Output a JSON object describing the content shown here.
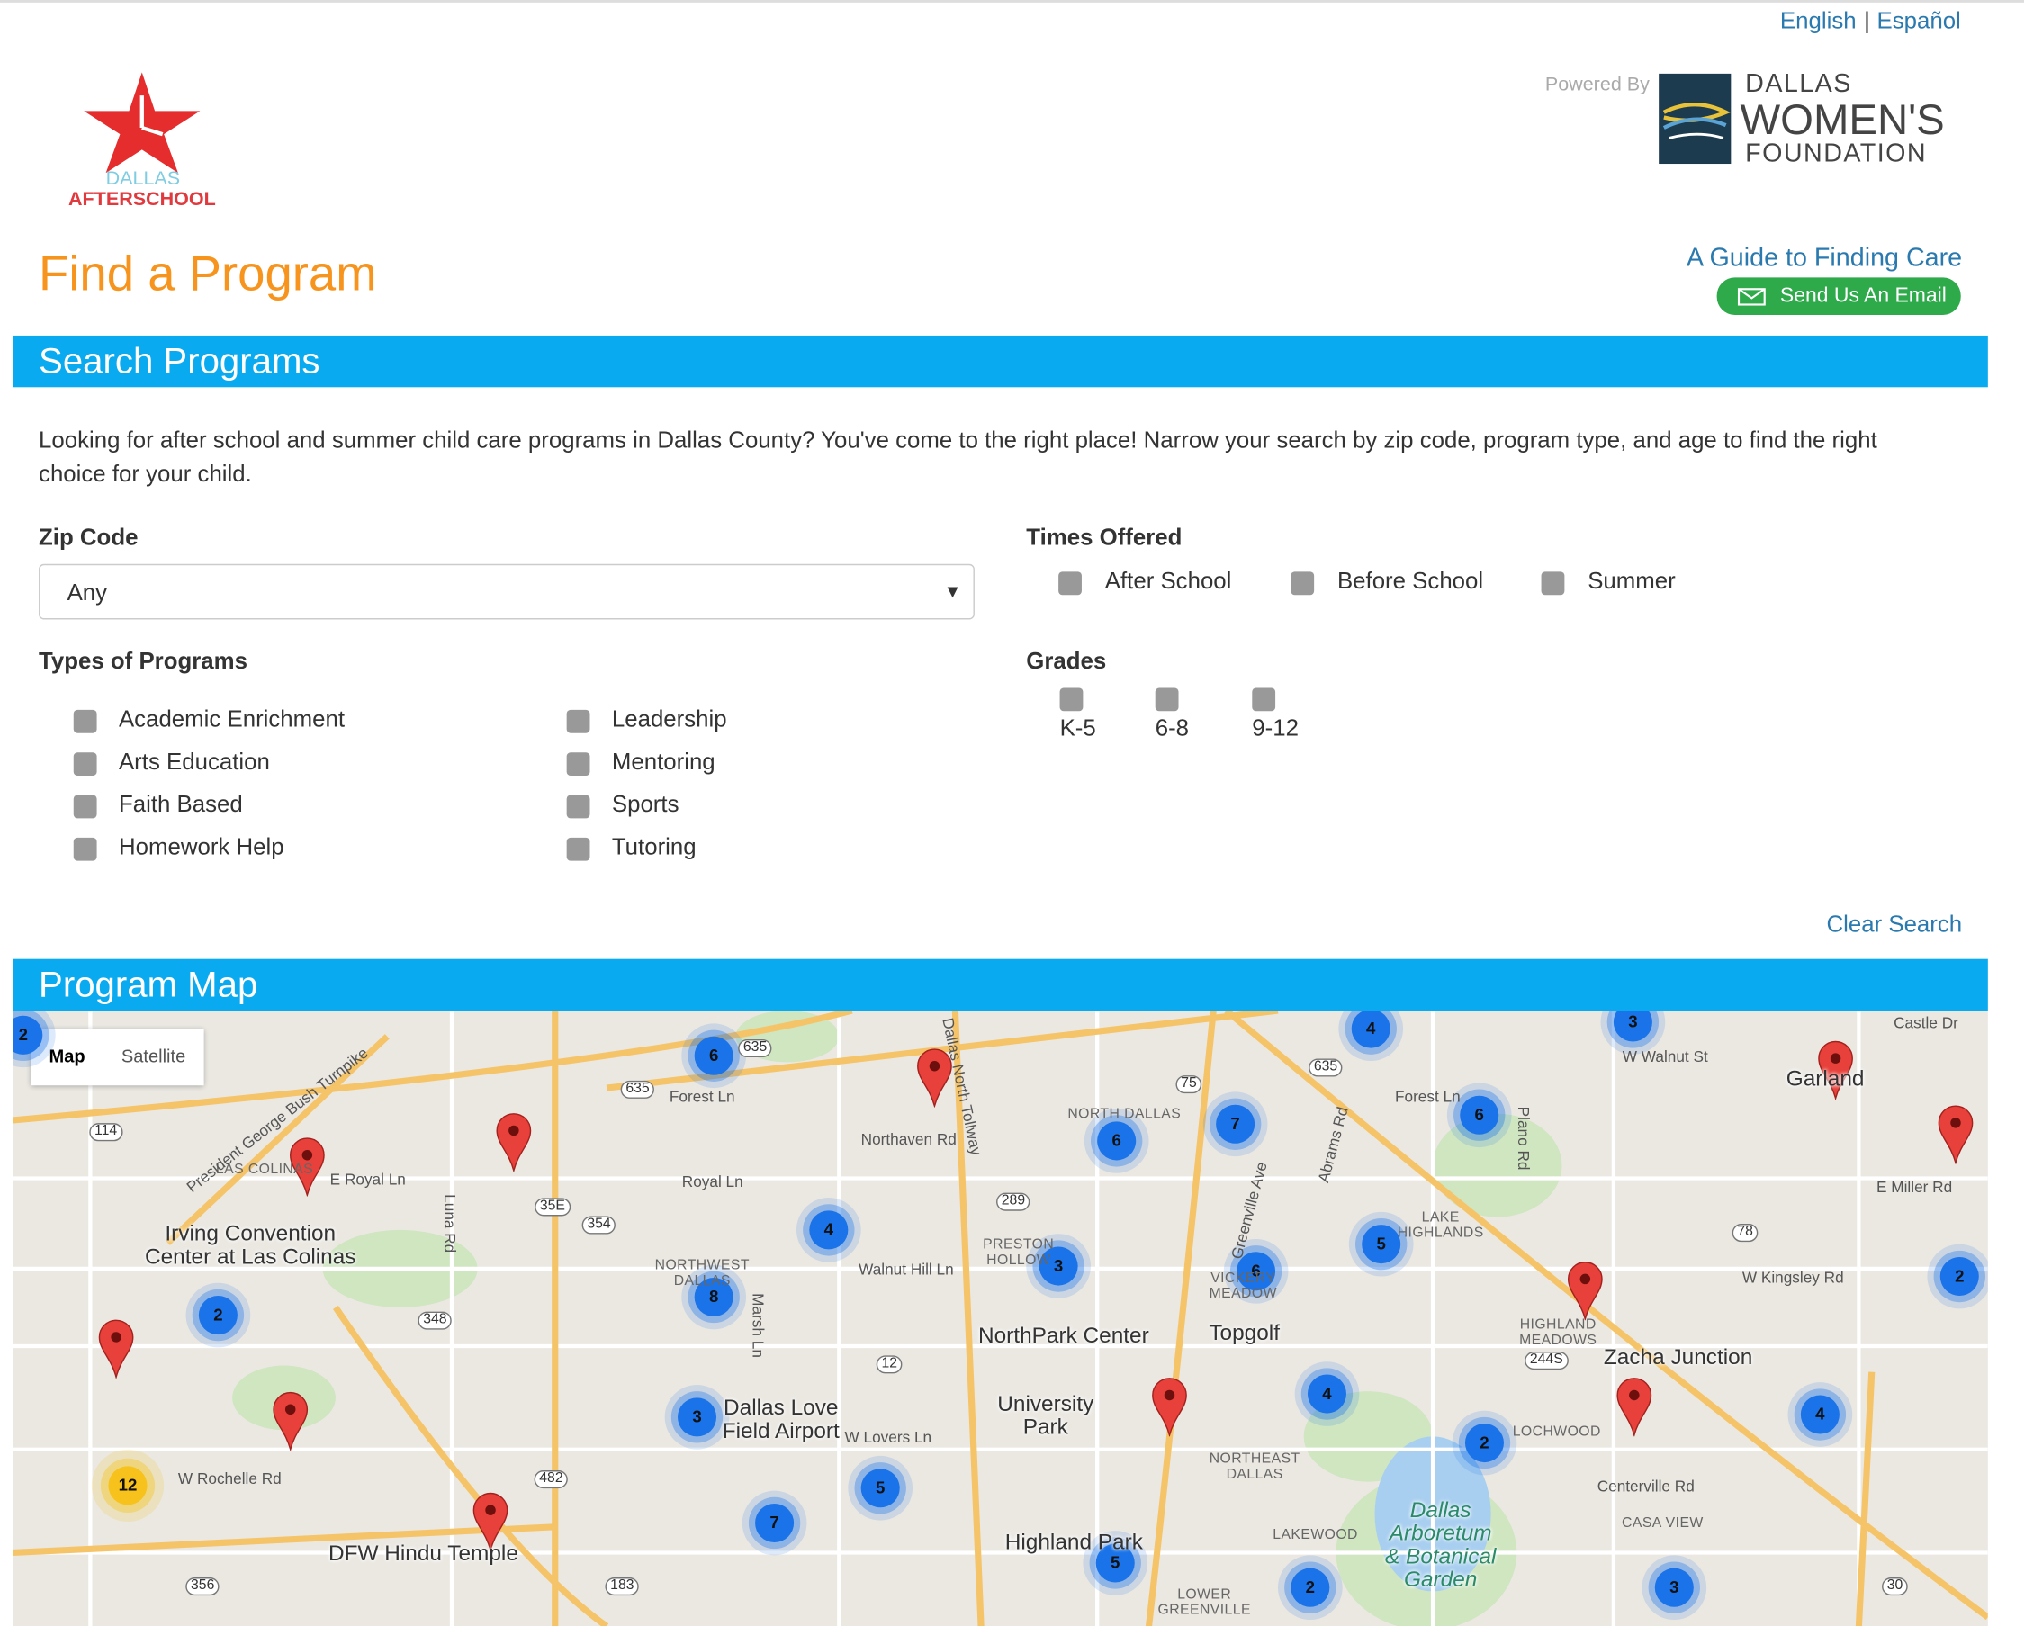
{
  "header": {
    "languages": [
      "English",
      "Español"
    ],
    "language_separator": "|",
    "logo": {
      "line1": "DALLAS",
      "line2": "AFTERSCHOOL"
    },
    "partner": {
      "powered_by": "Powered By",
      "line1": "DALLAS",
      "line2": "WOMEN'S",
      "line3": "FOUNDATION"
    },
    "title": "Find a Program",
    "guide_link": "A Guide to Finding Care",
    "email_button": "Send Us An Email"
  },
  "search": {
    "heading": "Search Programs",
    "intro": "Looking for after school and summer child care programs in Dallas County? You've come to the right place! Narrow your search by zip code, program type, and age to find the right choice for your child.",
    "zip_label": "Zip Code",
    "zip_value": "Any",
    "times_label": "Times Offered",
    "times": [
      "After School",
      "Before School",
      "Summer"
    ],
    "types_label": "Types of Programs",
    "types": [
      "Academic Enrichment",
      "Arts Education",
      "Faith Based",
      "Homework Help",
      "Leadership",
      "Mentoring",
      "Sports",
      "Tutoring"
    ],
    "grades_label": "Grades",
    "grades": [
      "K-5",
      "6-8",
      "9-12"
    ],
    "clear": "Clear Search"
  },
  "map": {
    "heading": "Program Map",
    "controls": [
      "Map",
      "Satellite"
    ],
    "clusters": [
      6,
      4,
      3,
      6,
      7,
      6,
      4,
      5,
      3,
      6,
      2,
      2,
      8,
      4,
      3,
      2,
      4,
      5,
      7,
      5,
      2,
      3,
      12,
      2
    ],
    "places": [
      "Irving Convention\nCenter at Las Colinas",
      "NorthPark Center",
      "Topgolf",
      "Dallas Love\nField Airport",
      "University\nPark",
      "Highland Park",
      "DFW Hindu Temple",
      "Zacha Junction",
      "Garland",
      "Dallas\nArboretum\n& Botanical\nGarden"
    ],
    "districts": [
      "LAS COLINAS",
      "NORTH DALLAS",
      "NORTHWEST\nDALLAS",
      "PRESTON\nHOLLOW",
      "LAKE\nHIGHLANDS",
      "HIGHLAND\nMEADOWS",
      "LOCHWOOD",
      "NORTHEAST\nDALLAS",
      "LAKEWOOD",
      "CASA VIEW",
      "LOWER\nGREENVILLE",
      "VICKERY\nMEADOW"
    ],
    "roads": [
      "Forest Ln",
      "Royal Ln",
      "Walnut Hill Ln",
      "Northaven Rd",
      "W Lovers Ln",
      "E Royal Ln",
      "W Rochelle Rd",
      "E Miller Rd",
      "W Kingsley Rd",
      "Centerville Rd",
      "President George Bush Turnpike",
      "Dallas North Tollway",
      "Greenville Ave",
      "Abrams Rd",
      "Plano Rd",
      "Forest Ln",
      "W Walnut St",
      "Castle Dr",
      "Marsh Ln",
      "Luna Rd"
    ],
    "shields": [
      "635",
      "75",
      "35E",
      "354",
      "348",
      "114",
      "12",
      "482",
      "183",
      "356",
      "289",
      "78",
      "244S",
      "30",
      "635",
      "635"
    ]
  }
}
